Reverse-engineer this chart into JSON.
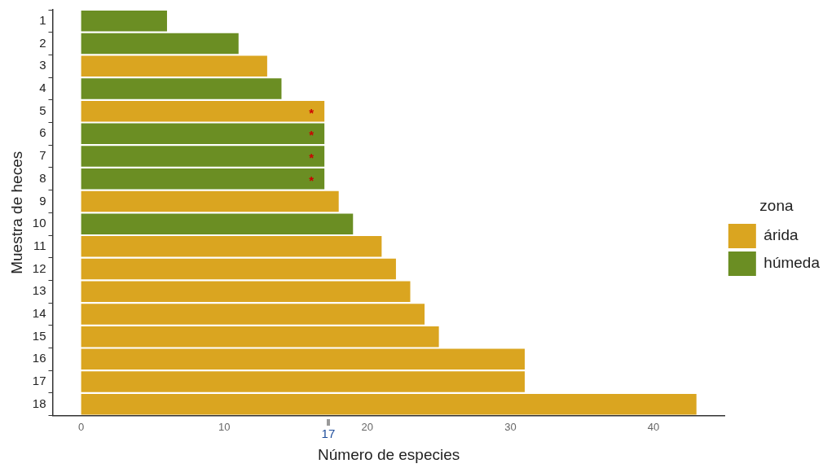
{
  "chart_data": {
    "type": "bar",
    "orientation": "horizontal",
    "stacked": true,
    "xlabel": "Número de especies",
    "ylabel": "Muestra de heces",
    "legend_title": "zona",
    "legend": "right",
    "grid": false,
    "categories": [
      "1",
      "2",
      "3",
      "4",
      "5",
      "6",
      "7",
      "8",
      "9",
      "10",
      "11",
      "12",
      "13",
      "14",
      "15",
      "16",
      "17",
      "18"
    ],
    "series": [
      {
        "name": "árida",
        "color": "#daa520",
        "values": [
          null,
          null,
          13,
          null,
          17,
          null,
          null,
          null,
          18,
          null,
          21,
          22,
          23,
          24,
          25,
          31,
          31,
          43
        ],
        "value_labels": [
          null,
          null,
          null,
          null,
          "*",
          null,
          null,
          null,
          null,
          null,
          null,
          null,
          null,
          null,
          null,
          null,
          null,
          null
        ]
      },
      {
        "name": "húmeda",
        "color": "#6b8e23",
        "values": [
          6,
          11,
          null,
          14,
          null,
          17,
          17,
          17,
          null,
          19,
          null,
          null,
          null,
          null,
          null,
          null,
          null,
          null
        ],
        "value_labels": [
          null,
          null,
          null,
          null,
          null,
          "*",
          "*",
          "*",
          null,
          null,
          null,
          null,
          null,
          null,
          null,
          null,
          null,
          null
        ]
      }
    ],
    "xlim": [
      -2,
      45
    ],
    "xticks": [
      0,
      10,
      20,
      30,
      40
    ],
    "annotations": [
      "17"
    ]
  }
}
